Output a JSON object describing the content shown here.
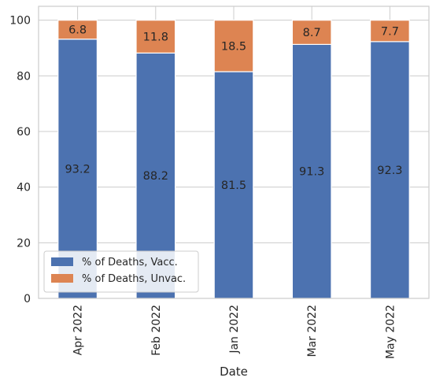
{
  "chart_data": {
    "type": "bar",
    "stacked": true,
    "categories": [
      "Apr 2022",
      "Feb 2022",
      "Jan 2022",
      "Mar 2022",
      "May 2022"
    ],
    "series": [
      {
        "name": "% of Deaths, Vacc.",
        "values": [
          93.2,
          88.2,
          81.5,
          91.3,
          92.3
        ],
        "color": "#4c72b0"
      },
      {
        "name": "% of Deaths, Unvac.",
        "values": [
          6.8,
          11.8,
          18.5,
          8.7,
          7.7
        ],
        "color": "#dd8452"
      }
    ],
    "data_labels": [
      [
        "93.2",
        "88.2",
        "81.5",
        "91.3",
        "92.3"
      ],
      [
        "6.8",
        "11.8",
        "18.5",
        "8.7",
        "7.7"
      ]
    ],
    "title": "",
    "xlabel": "Date",
    "ylabel": "",
    "ylim": [
      0,
      105
    ],
    "yticks": [
      0,
      20,
      40,
      60,
      80,
      100
    ],
    "grid": true,
    "legend_position": "lower-left",
    "background": "#ffffff",
    "grid_color": "#cccccc"
  }
}
